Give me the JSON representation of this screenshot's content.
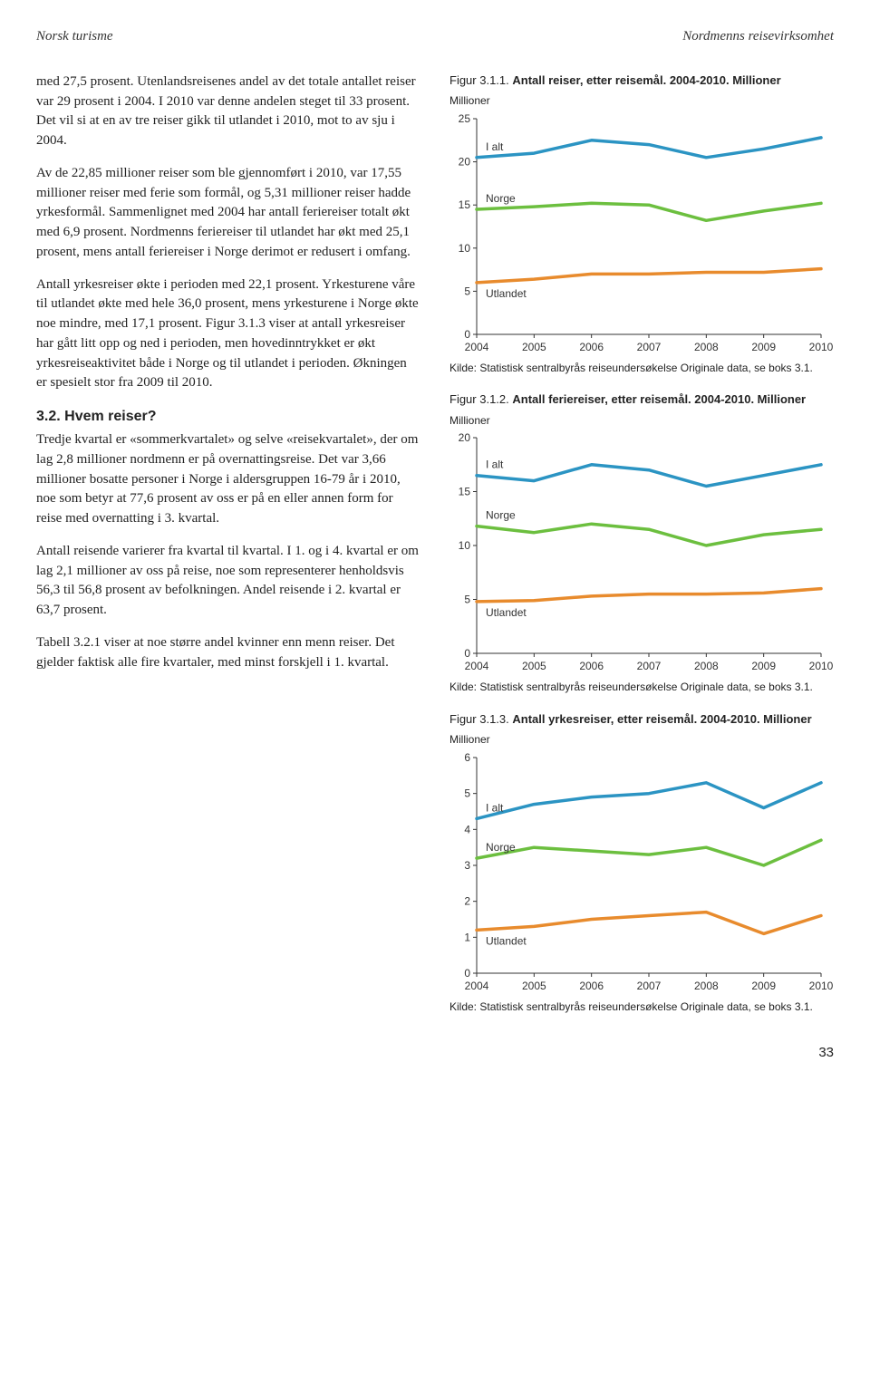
{
  "header": {
    "left": "Norsk turisme",
    "right": "Nordmenns reisevirksomhet"
  },
  "paragraphs": {
    "p1": "med 27,5 prosent. Utenlandsreisenes andel av det totale antallet reiser var 29 prosent i 2004. I 2010 var denne andelen steget til 33 prosent. Det vil si at en av tre reiser gikk til utlandet i 2010, mot to av sju i 2004.",
    "p2": "Av de 22,85 millioner reiser som ble gjennomført i 2010, var 17,55 millioner reiser med ferie som formål, og 5,31 millioner reiser hadde yrkesformål. Sammenlignet med 2004 har antall feriereiser totalt økt med 6,9 prosent. Nordmenns feriereiser til utlandet har økt med 25,1 prosent, mens antall feriereiser i Norge derimot er redusert i omfang.",
    "p3": "Antall yrkesreiser økte i perioden med 22,1 prosent. Yrkesturene våre til utlandet økte med hele 36,0 prosent, mens yrkesturene i Norge økte noe mindre, med 17,1 prosent. Figur 3.1.3 viser at antall yrkesreiser har gått litt opp og ned i perioden, men hovedinntrykket er økt yrkesreiseaktivitet både i Norge og til utlandet i perioden. Økningen er spesielt stor fra 2009 til 2010.",
    "h32": "3.2. Hvem reiser?",
    "p4": "Tredje kvartal er «sommerkvartalet» og selve «reisekvartalet», der om lag 2,8 millioner nordmenn er på overnattingsreise. Det var 3,66 millioner bosatte personer i Norge i aldersgruppen 16-79 år i 2010, noe som betyr at 77,6 prosent av oss er på en eller annen form for reise med overnatting i 3. kvartal.",
    "p5": "Antall reisende varierer fra kvartal til kvartal. I 1. og i 4. kvartal er om lag 2,1 millioner av oss på reise, noe som representerer henholdsvis 56,3 til 56,8 prosent av befolkningen. Andel reisende i 2. kvartal er 63,7 prosent.",
    "p6": "Tabell 3.2.1 viser at noe større andel kvinner enn menn reiser. Det gjelder faktisk alle fire kvartaler, med minst forskjell i 1. kvartal."
  },
  "charts": {
    "common": {
      "x_years": [
        2004,
        2005,
        2006,
        2007,
        2008,
        2009,
        2010
      ],
      "x_labels": [
        "2004",
        "2005",
        "2006",
        "2007",
        "2008",
        "2009",
        "2010"
      ],
      "colors": {
        "i_alt": "#2b94c3",
        "norge": "#6cbf3f",
        "utlandet": "#e88b2d",
        "grid": "#888888",
        "axis": "#333333",
        "bg": "#ffffff"
      },
      "label_fontsize": 12,
      "line_width": 3.5,
      "axis_unit": "Millioner",
      "legend_labels": {
        "i_alt": "I alt",
        "norge": "Norge",
        "utlandet": "Utlandet"
      },
      "source": "Kilde: Statistisk sentralbyrås reiseundersøkelse Originale data, se boks 3.1."
    },
    "fig311": {
      "title_no": "Figur 3.1.1.",
      "title_bold": "Antall reiser, etter reisemål. 2004-2010. Millioner",
      "ylim": [
        0,
        25
      ],
      "ytick_step": 5,
      "yticks": [
        0,
        5,
        10,
        15,
        20,
        25
      ],
      "series": {
        "i_alt": [
          20.5,
          21.0,
          22.5,
          22.0,
          20.5,
          21.5,
          22.8
        ],
        "norge": [
          14.5,
          14.8,
          15.2,
          15.0,
          13.2,
          14.3,
          15.2
        ],
        "utlandet": [
          6.0,
          6.4,
          7.0,
          7.0,
          7.2,
          7.2,
          7.6
        ]
      }
    },
    "fig312": {
      "title_no": "Figur 3.1.2.",
      "title_bold": "Antall feriereiser, etter reisemål. 2004-2010. Millioner",
      "ylim": [
        0,
        20
      ],
      "ytick_step": 5,
      "yticks": [
        0,
        5,
        10,
        15,
        20
      ],
      "series": {
        "i_alt": [
          16.5,
          16.0,
          17.5,
          17.0,
          15.5,
          16.5,
          17.5
        ],
        "norge": [
          11.8,
          11.2,
          12.0,
          11.5,
          10.0,
          11.0,
          11.5
        ],
        "utlandet": [
          4.8,
          4.9,
          5.3,
          5.5,
          5.5,
          5.6,
          6.0
        ]
      }
    },
    "fig313": {
      "title_no": "Figur 3.1.3.",
      "title_bold": "Antall yrkesreiser, etter reisemål. 2004-2010. Millioner",
      "ylim": [
        0,
        6
      ],
      "ytick_step": 1,
      "yticks": [
        0,
        1,
        2,
        3,
        4,
        5,
        6
      ],
      "series": {
        "i_alt": [
          4.3,
          4.7,
          4.9,
          5.0,
          5.3,
          4.6,
          5.3
        ],
        "norge": [
          3.2,
          3.5,
          3.4,
          3.3,
          3.5,
          3.0,
          3.7
        ],
        "utlandet": [
          1.2,
          1.3,
          1.5,
          1.6,
          1.7,
          1.1,
          1.6
        ]
      }
    }
  },
  "page_number": "33"
}
